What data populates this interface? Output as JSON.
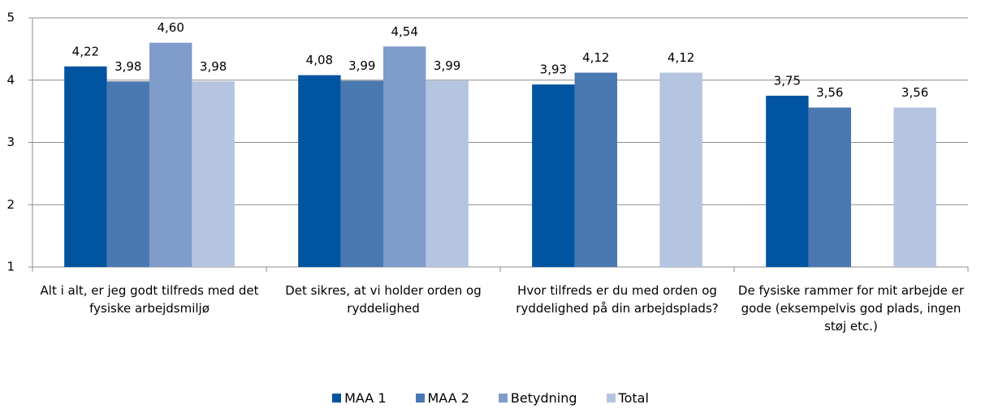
{
  "chart_data": {
    "type": "bar",
    "categories": [
      "Alt i alt, er jeg godt tilfreds med det fysiske arbejdsmiljø",
      "Det sikres, at vi holder orden og ryddelighed",
      "Hvor tilfreds er du med orden og ryddelighed på din arbejdsplads?",
      "De fysiske rammer for mit arbejde er gode (eksempelvis god plads, ingen støj etc.)"
    ],
    "series": [
      {
        "name": "MAA 1",
        "color": "#0054a0",
        "values": [
          4.22,
          4.08,
          3.93,
          3.75
        ],
        "value_labels": [
          "4,22",
          "4,08",
          "3,93",
          "3,75"
        ]
      },
      {
        "name": "MAA 2",
        "color": "#4a78b0",
        "values": [
          3.98,
          3.99,
          4.12,
          3.56
        ],
        "value_labels": [
          "3,98",
          "3,99",
          "4,12",
          "3,56"
        ]
      },
      {
        "name": "Betydning",
        "color": "#7f9ccb",
        "values": [
          4.6,
          4.54,
          null,
          null
        ],
        "value_labels": [
          "4,60",
          "4,54",
          null,
          null
        ]
      },
      {
        "name": "Total",
        "color": "#b5c4e0",
        "values": [
          3.98,
          3.99,
          4.12,
          3.56
        ],
        "value_labels": [
          "3,98",
          "3,99",
          "4,12",
          "3,56"
        ]
      }
    ],
    "ylim": [
      1,
      5
    ],
    "yticks": [
      1,
      2,
      3,
      4,
      5
    ],
    "grid": true,
    "legend": "bottom"
  }
}
